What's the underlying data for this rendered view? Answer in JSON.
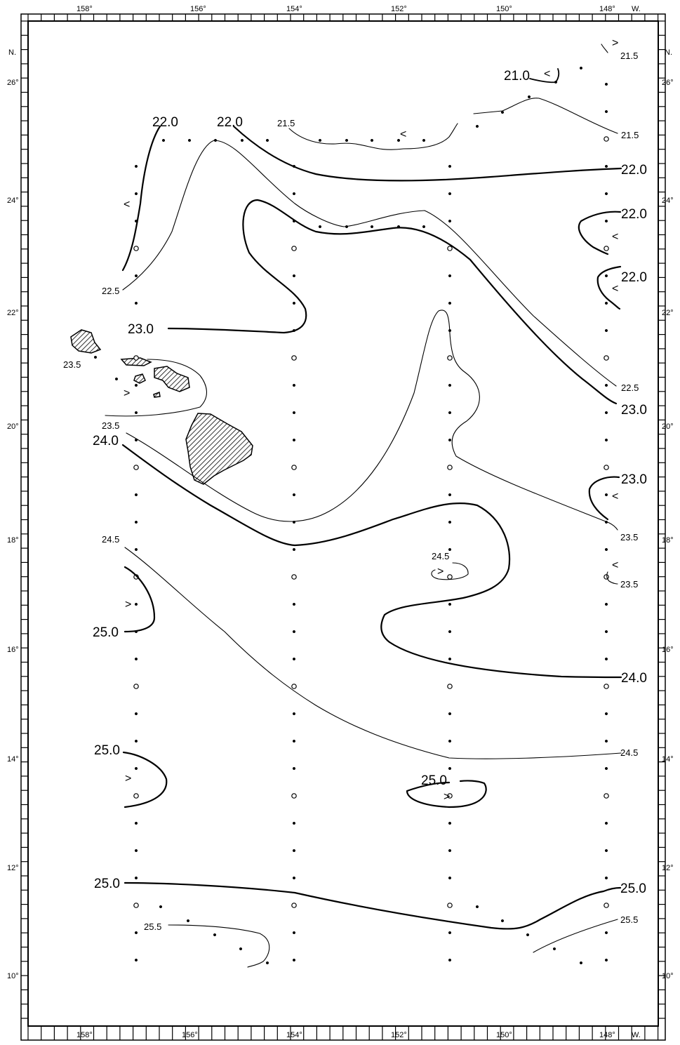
{
  "map": {
    "hemisphere_n": "N.",
    "hemisphere_w": "W.",
    "lon_labels": [
      "158°",
      "156°",
      "154°",
      "152°",
      "150°",
      "148°"
    ],
    "lat_labels": [
      "26°",
      "24°",
      "22°",
      "20°",
      "18°",
      "16°",
      "14°",
      "12°",
      "10°"
    ],
    "isotherm_labels": {
      "a": "21.5",
      "b": "21.0",
      "c": "22.0",
      "d": "22.0",
      "e": "21.5",
      "f": "21.5",
      "g": "22.0",
      "h": "22.0",
      "i": "22.0",
      "j": "22.5",
      "k": "23.0",
      "l": "23.5",
      "m": "22.5",
      "n": "23.0",
      "o": "23.5",
      "p": "24.0",
      "q": "23.0",
      "r": "24.5",
      "s": "24.5",
      "t": "23.5",
      "u": "23.5",
      "v": "25.0",
      "w": "24.0",
      "x": "25.0",
      "y": "24.5",
      "z": "25.0",
      "aa": "25.0",
      "ab": "25.0",
      "ac": "25.5",
      "ad": "25.5"
    },
    "arrows": {
      "a1": ">",
      "a2": "<",
      "a3": "<",
      "a4": "<",
      "a5": "<",
      "a6": "<",
      "a7": ">",
      "a8": "<",
      "a9": ">",
      "a10": "<",
      "a11": ">",
      "a12": ">",
      "a13": ">"
    }
  }
}
